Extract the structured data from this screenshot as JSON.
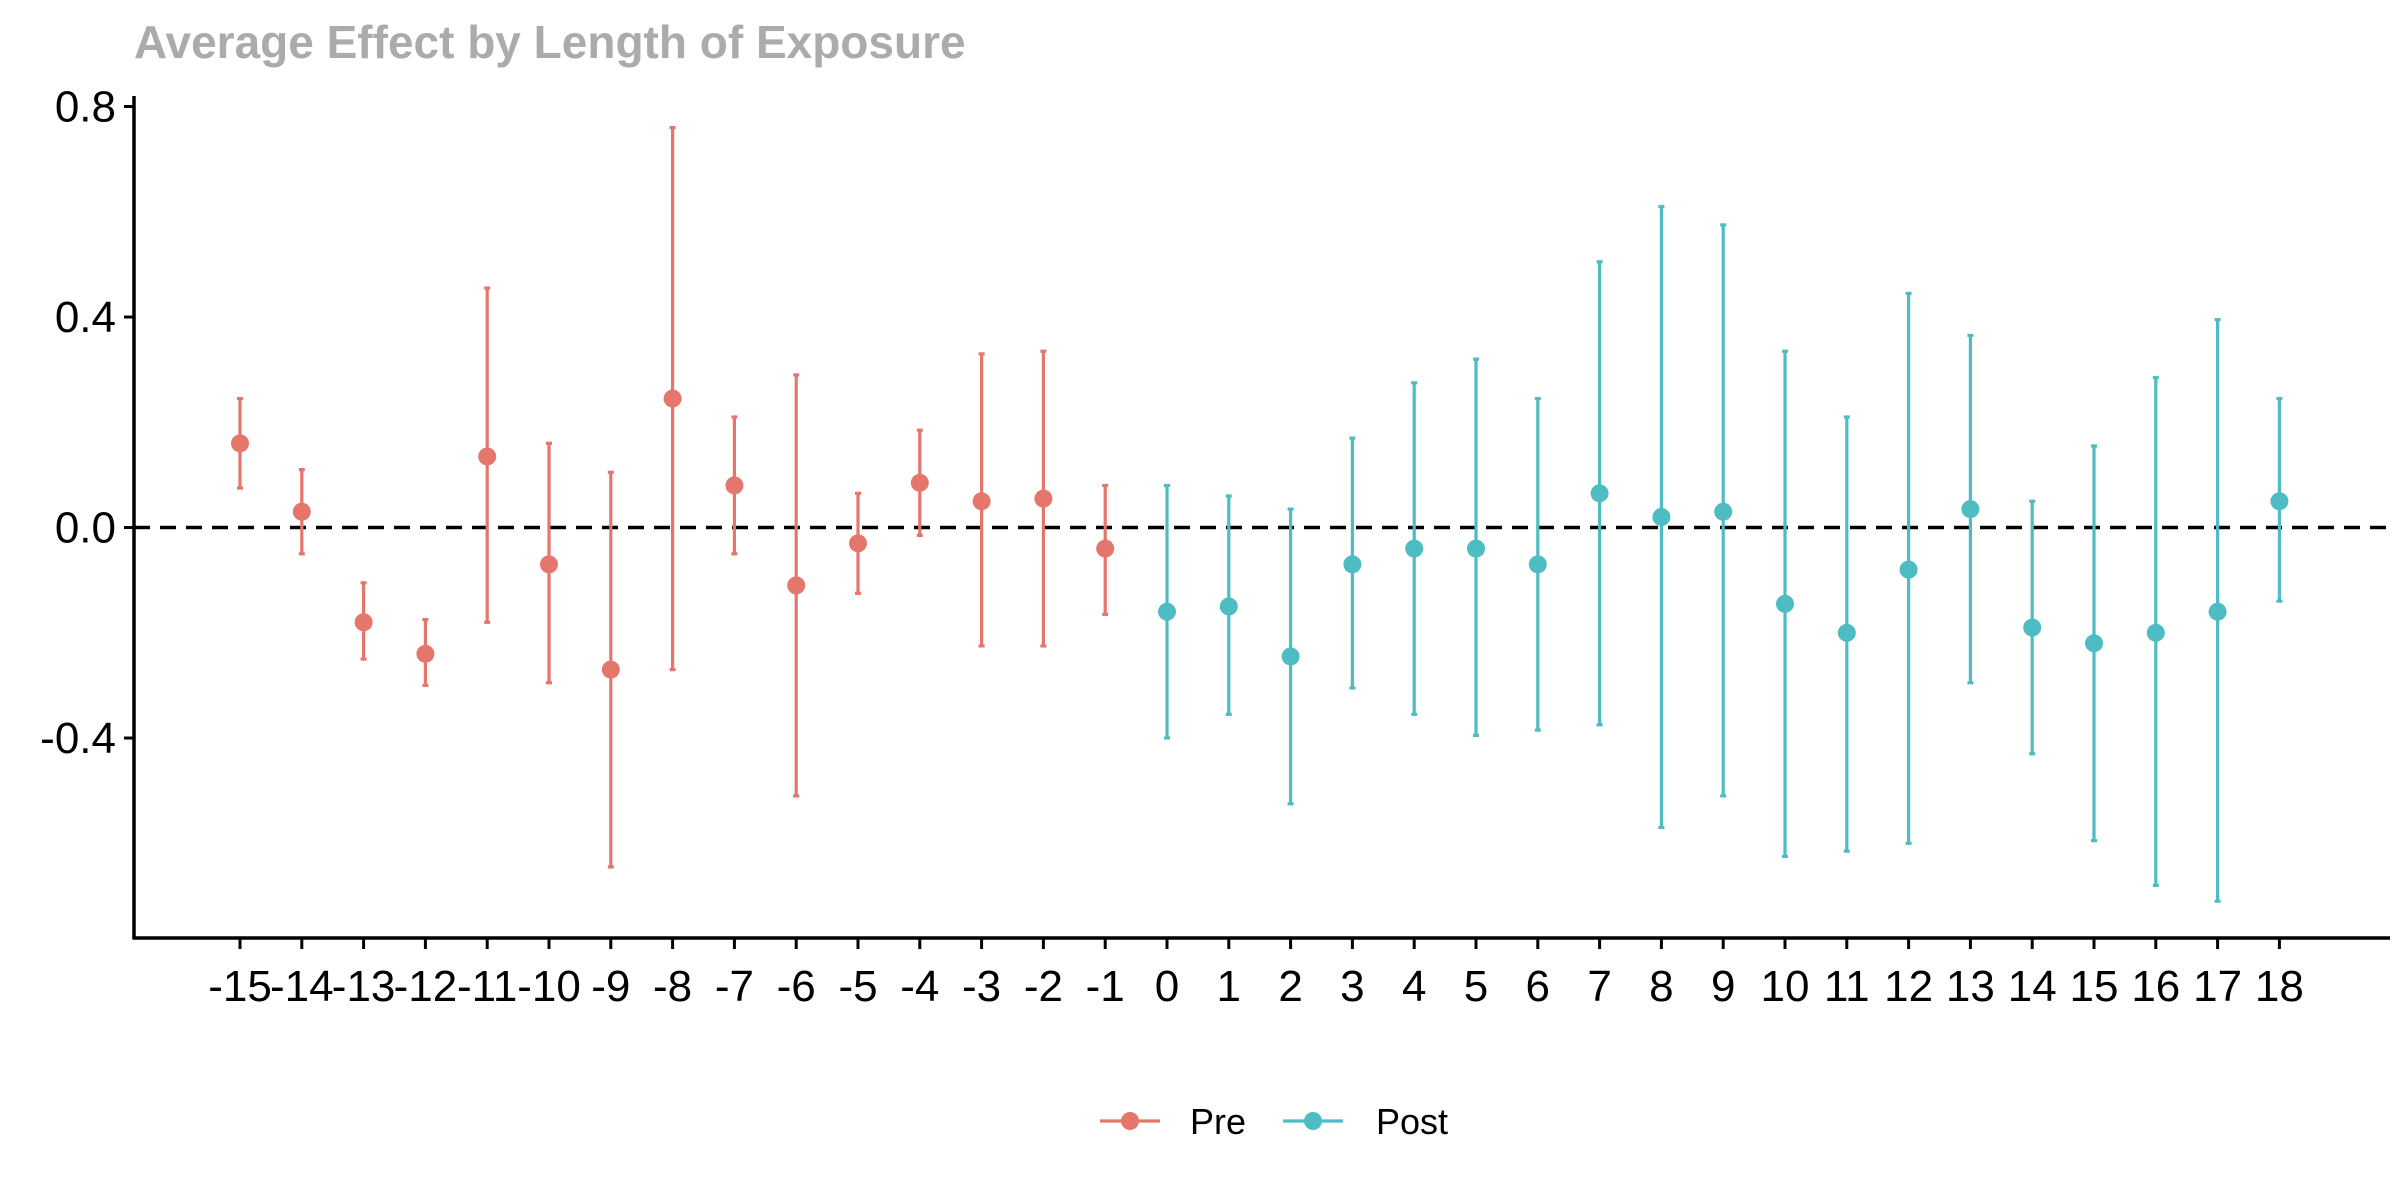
{
  "chart_data": {
    "type": "scatter",
    "title": "Average Effect by Length of Exposure",
    "xlabel": "",
    "ylabel": "",
    "x_categories": [
      "-15",
      "-14",
      "-13",
      "-12",
      "-11",
      "-10",
      "-9",
      "-8",
      "-7",
      "-6",
      "-5",
      "-4",
      "-3",
      "-2",
      "-1",
      "0",
      "1",
      "2",
      "3",
      "4",
      "5",
      "6",
      "7",
      "8",
      "9",
      "10",
      "11",
      "12",
      "13",
      "14",
      "15",
      "16",
      "17",
      "18"
    ],
    "ylim": [
      -0.78,
      0.82
    ],
    "yticks": [
      0.8,
      0.4,
      0.0,
      -0.4
    ],
    "ytick_labels": [
      "0.8",
      "0.4",
      "0.0",
      "-0.4"
    ],
    "reference_line": {
      "y": 0,
      "style": "dashed"
    },
    "grid": false,
    "legend_position": "bottom",
    "series": [
      {
        "name": "Pre",
        "color": "#E5766C",
        "points": [
          {
            "x": "-15",
            "y": 0.16,
            "lo": 0.075,
            "hi": 0.245
          },
          {
            "x": "-14",
            "y": 0.03,
            "lo": -0.05,
            "hi": 0.11
          },
          {
            "x": "-13",
            "y": -0.18,
            "lo": -0.25,
            "hi": -0.105
          },
          {
            "x": "-12",
            "y": -0.24,
            "lo": -0.3,
            "hi": -0.175
          },
          {
            "x": "-11",
            "y": 0.135,
            "lo": -0.18,
            "hi": 0.455
          },
          {
            "x": "-10",
            "y": -0.07,
            "lo": -0.295,
            "hi": 0.16
          },
          {
            "x": "-9",
            "y": -0.27,
            "lo": -0.645,
            "hi": 0.105
          },
          {
            "x": "-8",
            "y": 0.245,
            "lo": -0.27,
            "hi": 0.76
          },
          {
            "x": "-7",
            "y": 0.08,
            "lo": -0.05,
            "hi": 0.21
          },
          {
            "x": "-6",
            "y": -0.11,
            "lo": -0.51,
            "hi": 0.29
          },
          {
            "x": "-5",
            "y": -0.03,
            "lo": -0.125,
            "hi": 0.065
          },
          {
            "x": "-4",
            "y": 0.085,
            "lo": -0.015,
            "hi": 0.185
          },
          {
            "x": "-3",
            "y": 0.05,
            "lo": -0.225,
            "hi": 0.33
          },
          {
            "x": "-2",
            "y": 0.055,
            "lo": -0.225,
            "hi": 0.335
          },
          {
            "x": "-1",
            "y": -0.04,
            "lo": -0.165,
            "hi": 0.08
          }
        ]
      },
      {
        "name": "Post",
        "color": "#4DBCC3",
        "points": [
          {
            "x": "0",
            "y": -0.16,
            "lo": -0.4,
            "hi": 0.08
          },
          {
            "x": "1",
            "y": -0.15,
            "lo": -0.355,
            "hi": 0.06
          },
          {
            "x": "2",
            "y": -0.245,
            "lo": -0.525,
            "hi": 0.035
          },
          {
            "x": "3",
            "y": -0.07,
            "lo": -0.305,
            "hi": 0.17
          },
          {
            "x": "4",
            "y": -0.04,
            "lo": -0.355,
            "hi": 0.275
          },
          {
            "x": "5",
            "y": -0.04,
            "lo": -0.395,
            "hi": 0.32
          },
          {
            "x": "6",
            "y": -0.07,
            "lo": -0.385,
            "hi": 0.245
          },
          {
            "x": "7",
            "y": 0.065,
            "lo": -0.375,
            "hi": 0.505
          },
          {
            "x": "8",
            "y": 0.02,
            "lo": -0.57,
            "hi": 0.61
          },
          {
            "x": "9",
            "y": 0.03,
            "lo": -0.51,
            "hi": 0.575
          },
          {
            "x": "10",
            "y": -0.145,
            "lo": -0.625,
            "hi": 0.335
          },
          {
            "x": "11",
            "y": -0.2,
            "lo": -0.615,
            "hi": 0.21
          },
          {
            "x": "12",
            "y": -0.08,
            "lo": -0.6,
            "hi": 0.445
          },
          {
            "x": "13",
            "y": 0.035,
            "lo": -0.295,
            "hi": 0.365
          },
          {
            "x": "14",
            "y": -0.19,
            "lo": -0.43,
            "hi": 0.05
          },
          {
            "x": "15",
            "y": -0.22,
            "lo": -0.595,
            "hi": 0.155
          },
          {
            "x": "16",
            "y": -0.2,
            "lo": -0.68,
            "hi": 0.285
          },
          {
            "x": "17",
            "y": -0.16,
            "lo": -0.71,
            "hi": 0.395
          },
          {
            "x": "18",
            "y": 0.05,
            "lo": -0.14,
            "hi": 0.245
          }
        ]
      }
    ]
  }
}
